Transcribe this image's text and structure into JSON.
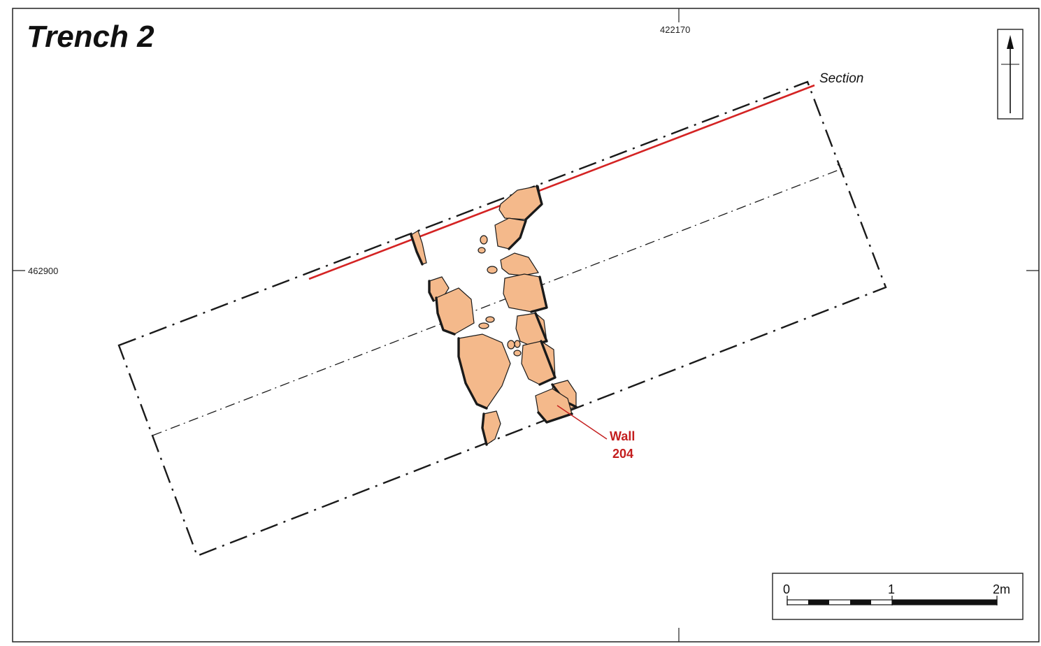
{
  "title": "Trench 2",
  "grid": {
    "easting_label": "422170",
    "northing_label": "462900"
  },
  "section_label": "Section",
  "feature": {
    "line1": "Wall",
    "line2": "204"
  },
  "scale_bar": {
    "label_0": "0",
    "label_1": "1",
    "label_2": "2m"
  },
  "colors": {
    "section_line": "#d42323",
    "stone_fill": "#f4b98b",
    "feature_label": "#c41e1e"
  },
  "icons": {
    "north_arrow": "north-arrow-icon"
  }
}
